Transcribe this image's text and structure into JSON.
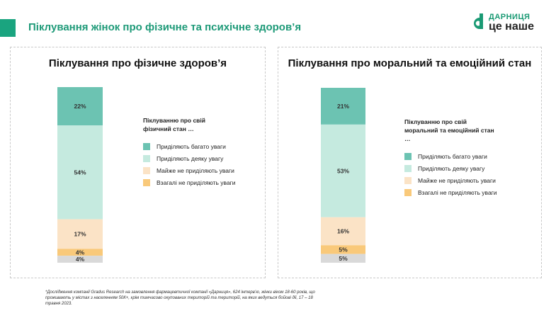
{
  "page": {
    "title": "Піклування жінок про фізичне та психічне здоров’я",
    "footnote": "*Дослідження компанії Gradus Research на замовлення фармацевтичної компанії «Дарниця», 624 інтерв’ю, жінки віком 18-60 років, що проживають у містах з населенням 50К+, крім тимчасово окупованих територій та територій, на яких ведуться бойові дії, 17 – 18 травня 2023."
  },
  "logo": {
    "line1": "ДАРНИЦЯ",
    "line2": "це наше",
    "color": "#1a9a74"
  },
  "colors": {
    "accent": "#1aa47f",
    "title": "#1e9a78"
  },
  "categories": [
    {
      "label": "Приділяють багато уваги",
      "color": "#6cc3b2"
    },
    {
      "label": "Приділяють деяку увагу",
      "color": "#c5eadf"
    },
    {
      "label": "Майже не приділяють уваги",
      "color": "#fbe3c6"
    },
    {
      "label": "Взагалі не приділяють уваги",
      "color": "#f9c97a"
    },
    {
      "label": "",
      "color": "#d9d9d9"
    }
  ],
  "chart_data": [
    {
      "type": "bar",
      "stacked": true,
      "title": "Піклування про фізичне здоров’я",
      "legend_title": "Піклуванню про свій фізичний стан …",
      "legend_position": "right",
      "values": [
        22,
        54,
        17,
        4,
        4
      ],
      "value_labels": [
        "22%",
        "54%",
        "17%",
        "4%",
        "4%"
      ]
    },
    {
      "type": "bar",
      "stacked": true,
      "title": "Піклування про моральний та емоційний стан",
      "legend_title": "Піклуванню про свій моральний та емоційний стан …",
      "legend_position": "right",
      "values": [
        21,
        53,
        16,
        5,
        5
      ],
      "value_labels": [
        "21%",
        "53%",
        "16%",
        "5%",
        "5%"
      ]
    }
  ]
}
